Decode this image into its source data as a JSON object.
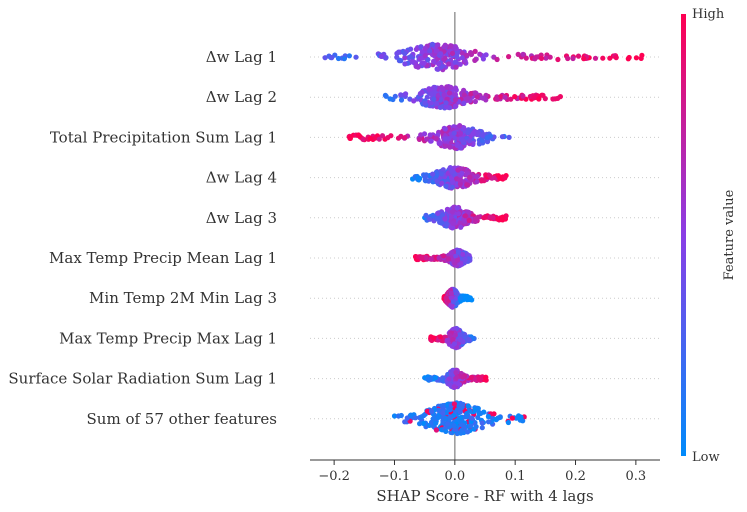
{
  "chart_data": {
    "type": "scatter",
    "subtype": "shap-beeswarm",
    "xlabel": "SHAP Score - RF with 4 lags",
    "xlim": [
      -0.24,
      0.34
    ],
    "xticks": [
      "−0.2",
      "−0.1",
      "0.0",
      "0.1",
      "0.2",
      "0.3"
    ],
    "xtick_values": [
      -0.2,
      -0.1,
      0.0,
      0.1,
      0.2,
      0.3
    ],
    "colorbar": {
      "label": "Feature value",
      "high": "High",
      "low": "Low",
      "low_color": "#008bfb",
      "high_color": "#ff0052"
    },
    "features": [
      {
        "name": "Δw Lag 1",
        "min": -0.215,
        "max": 0.31,
        "center": -0.03,
        "spread": 0.045,
        "width": 13,
        "low_side": "negative"
      },
      {
        "name": "Δw Lag 2",
        "min": -0.115,
        "max": 0.175,
        "center": -0.02,
        "spread": 0.035,
        "width": 11,
        "low_side": "negative"
      },
      {
        "name": "Total Precipitation Sum Lag 1",
        "min": -0.175,
        "max": 0.09,
        "center": 0.005,
        "spread": 0.03,
        "width": 12,
        "low_side": "positive"
      },
      {
        "name": "Δw Lag 4",
        "min": -0.07,
        "max": 0.085,
        "center": 0.0,
        "spread": 0.025,
        "width": 11,
        "low_side": "negative"
      },
      {
        "name": "Δw Lag 3",
        "min": -0.05,
        "max": 0.085,
        "center": 0.0,
        "spread": 0.02,
        "width": 11,
        "low_side": "negative"
      },
      {
        "name": "Max Temp Precip Mean Lag 1",
        "min": -0.065,
        "max": 0.025,
        "center": 0.005,
        "spread": 0.012,
        "width": 8,
        "low_side": "positive"
      },
      {
        "name": "Min Temp 2M Min Lag 3",
        "min": -0.018,
        "max": 0.028,
        "center": -0.003,
        "spread": 0.008,
        "width": 9,
        "low_side": "positive"
      },
      {
        "name": "Max Temp Precip Max Lag 1",
        "min": -0.04,
        "max": 0.032,
        "center": 0.002,
        "spread": 0.01,
        "width": 10,
        "low_side": "positive"
      },
      {
        "name": "Surface Solar Radiation Sum Lag 1",
        "min": -0.05,
        "max": 0.052,
        "center": 0.0,
        "spread": 0.01,
        "width": 9,
        "low_side": "negative"
      },
      {
        "name": "Sum of 57 other features",
        "min": -0.1,
        "max": 0.115,
        "center": 0.0,
        "spread": 0.04,
        "width": 16,
        "low_side": "mixed"
      }
    ]
  }
}
